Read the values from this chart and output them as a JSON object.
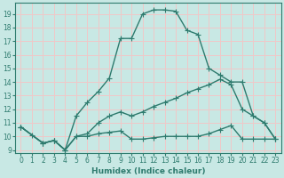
{
  "line1_x": [
    0,
    1,
    2,
    3,
    4,
    5,
    6,
    7,
    8,
    9,
    10,
    11,
    12,
    13,
    14,
    15,
    16,
    17,
    18,
    19,
    20,
    21,
    22,
    23
  ],
  "line1_y": [
    10.7,
    10.1,
    9.5,
    9.7,
    9.0,
    11.5,
    12.5,
    13.3,
    14.3,
    17.2,
    17.2,
    19.0,
    19.3,
    19.3,
    19.2,
    17.8,
    17.5,
    15.0,
    14.5,
    14.0,
    14.0,
    11.5,
    11.0,
    9.8
  ],
  "line2_x": [
    0,
    2,
    3,
    4,
    5,
    6,
    7,
    8,
    9,
    10,
    11,
    12,
    13,
    14,
    15,
    16,
    17,
    18,
    19,
    20,
    21,
    22,
    23
  ],
  "line2_y": [
    10.7,
    9.5,
    9.7,
    9.0,
    10.0,
    10.2,
    11.0,
    11.5,
    11.8,
    11.5,
    11.8,
    12.2,
    12.5,
    12.8,
    13.2,
    13.5,
    13.8,
    14.2,
    13.8,
    12.0,
    11.5,
    11.0,
    9.8
  ],
  "line3_x": [
    0,
    2,
    3,
    4,
    5,
    6,
    7,
    8,
    9,
    10,
    11,
    12,
    13,
    14,
    15,
    16,
    17,
    18,
    19,
    20,
    21,
    22,
    23
  ],
  "line3_y": [
    10.7,
    9.5,
    9.7,
    9.0,
    10.0,
    10.0,
    10.2,
    10.3,
    10.4,
    9.8,
    9.8,
    9.9,
    10.0,
    10.0,
    10.0,
    10.0,
    10.2,
    10.5,
    10.8,
    9.8,
    9.8,
    9.8,
    9.8
  ],
  "bg_color": "#c8e8e4",
  "line_color": "#2e7b6e",
  "grid_color": "#f0c8c8",
  "xlabel": "Humidex (Indice chaleur)",
  "xlim": [
    -0.5,
    23.5
  ],
  "ylim": [
    8.8,
    19.8
  ],
  "yticks": [
    9,
    10,
    11,
    12,
    13,
    14,
    15,
    16,
    17,
    18,
    19
  ],
  "xticks": [
    0,
    1,
    2,
    3,
    4,
    5,
    6,
    7,
    8,
    9,
    10,
    11,
    12,
    13,
    14,
    15,
    16,
    17,
    18,
    19,
    20,
    21,
    22,
    23
  ],
  "xlabel_fontsize": 6.5,
  "tick_fontsize": 5.5,
  "lw": 1.0,
  "marker_size": 4.0
}
